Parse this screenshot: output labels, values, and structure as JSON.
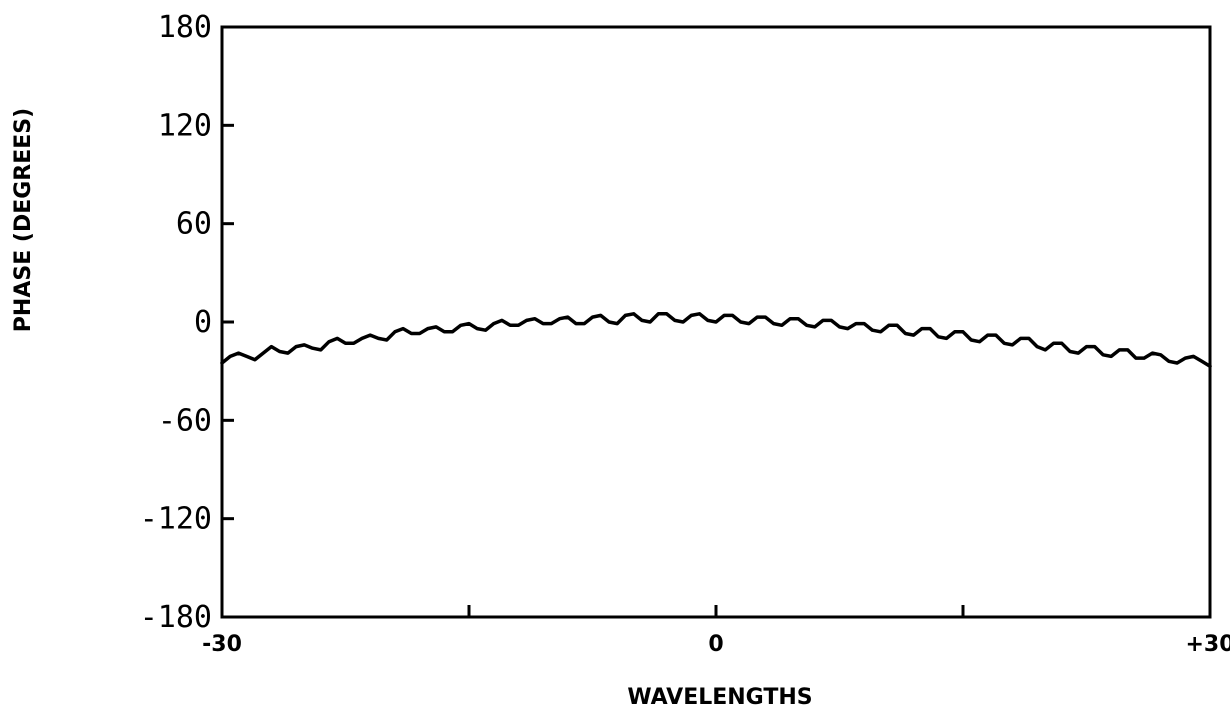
{
  "chart_data": {
    "type": "line",
    "title": "",
    "xlabel": "WAVELENGTHS",
    "ylabel": "PHASE (DEGREES)",
    "xlim": [
      -30,
      30
    ],
    "ylim": [
      -180,
      180
    ],
    "x_tick_labels": [
      {
        "value": -30,
        "label": "-30"
      },
      {
        "value": 0,
        "label": "0"
      },
      {
        "value": 30,
        "label": "+30"
      }
    ],
    "x_minor_ticks": [
      -15,
      15
    ],
    "y_tick_labels": [
      {
        "value": 180,
        "label": "180"
      },
      {
        "value": 120,
        "label": "120"
      },
      {
        "value": 60,
        "label": "60"
      },
      {
        "value": 0,
        "label": "0"
      },
      {
        "value": -60,
        "label": "-60"
      },
      {
        "value": -120,
        "label": "-120"
      },
      {
        "value": -180,
        "label": "-180"
      }
    ],
    "grid": false,
    "series": [
      {
        "color": "#000000",
        "x": [
          -30,
          -29.5,
          -29,
          -28.5,
          -28,
          -27.5,
          -27,
          -26.5,
          -26,
          -25.5,
          -25,
          -24.5,
          -24,
          -23.5,
          -23,
          -22.5,
          -22,
          -21.5,
          -21,
          -20.5,
          -20,
          -19.5,
          -19,
          -18.5,
          -18,
          -17.5,
          -17,
          -16.5,
          -16,
          -15.5,
          -15,
          -14.5,
          -14,
          -13.5,
          -13,
          -12.5,
          -12,
          -11.5,
          -11,
          -10.5,
          -10,
          -9.5,
          -9,
          -8.5,
          -8,
          -7.5,
          -7,
          -6.5,
          -6,
          -5.5,
          -5,
          -4.5,
          -4,
          -3.5,
          -3,
          -2.5,
          -2,
          -1.5,
          -1,
          -0.5,
          0,
          0.5,
          1,
          1.5,
          2,
          2.5,
          3,
          3.5,
          4,
          4.5,
          5,
          5.5,
          6,
          6.5,
          7,
          7.5,
          8,
          8.5,
          9,
          9.5,
          10,
          10.5,
          11,
          11.5,
          12,
          12.5,
          13,
          13.5,
          14,
          14.5,
          15,
          15.5,
          16,
          16.5,
          17,
          17.5,
          18,
          18.5,
          19,
          19.5,
          20,
          20.5,
          21,
          21.5,
          22,
          22.5,
          23,
          23.5,
          24,
          24.5,
          25,
          25.5,
          26,
          26.5,
          27,
          27.5,
          28,
          28.5,
          29,
          29.5,
          30
        ],
        "values": [
          -25,
          -21,
          -19,
          -21,
          -23,
          -19,
          -15,
          -18,
          -19,
          -15,
          -14,
          -16,
          -17,
          -12,
          -10,
          -13,
          -13,
          -10,
          -8,
          -10,
          -11,
          -6,
          -4,
          -7,
          -7,
          -4,
          -3,
          -6,
          -6,
          -2,
          -1,
          -4,
          -5,
          -1,
          1,
          -2,
          -2,
          1,
          2,
          -1,
          -1,
          2,
          3,
          -1,
          -1,
          3,
          4,
          0,
          -1,
          4,
          5,
          1,
          0,
          5,
          5,
          1,
          0,
          4,
          5,
          1,
          0,
          4,
          4,
          0,
          -1,
          3,
          3,
          -1,
          -2,
          2,
          2,
          -2,
          -3,
          1,
          1,
          -3,
          -4,
          -1,
          -1,
          -5,
          -6,
          -2,
          -2,
          -7,
          -8,
          -4,
          -4,
          -9,
          -10,
          -6,
          -6,
          -11,
          -12,
          -8,
          -8,
          -13,
          -14,
          -10,
          -10,
          -15,
          -17,
          -13,
          -13,
          -18,
          -19,
          -15,
          -15,
          -20,
          -21,
          -17,
          -17,
          -22,
          -22,
          -19,
          -20,
          -24,
          -25,
          -22,
          -21,
          -24,
          -27
        ]
      }
    ]
  }
}
